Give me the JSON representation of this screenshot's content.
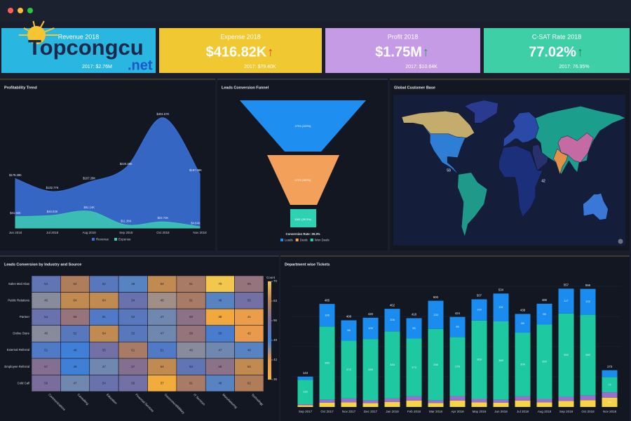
{
  "watermark": [
    "Topcongcu",
    ".net"
  ],
  "kpis": [
    {
      "title": "Revenue 2018",
      "previous": "2017: $2.76M",
      "color": "#29b6e0"
    },
    {
      "title": "Expense 2018",
      "value": "$416.82K",
      "arrow": "↑",
      "arrow_color": "#e8433a",
      "previous": "2017: $79.40K",
      "color": "#f0c832"
    },
    {
      "title": "Profit 2018",
      "value": "$1.75M",
      "arrow": "↑",
      "arrow_color": "#1f9e5a",
      "previous": "2017: $10.64K",
      "color": "#c59be6"
    },
    {
      "title": "C-SAT Rate 2018",
      "value": "77.02%",
      "arrow": "↑",
      "arrow_color": "#1f8a4c",
      "previous": "2017: 76.95%",
      "color": "#3fcfa6"
    }
  ],
  "chart_data": [
    {
      "type": "area",
      "title": "Profitability Trend",
      "categories": [
        "Jun 2018",
        "Jul 2018",
        "Aug 2018",
        "Sep 2018",
        "Oct 2018",
        "Nov 2018"
      ],
      "series": [
        {
          "name": "Revenue",
          "color": "#3b6fd6",
          "values": [
            179.38,
            132.77,
            167.29,
            220.38,
            401.57,
            197.08
          ],
          "value_labels": [
            "$179.38K",
            "$132.77K",
            "$167.29K",
            "$220.38K",
            "$401.57K",
            "$197.08K"
          ]
        },
        {
          "name": "Expense",
          "color": "#3cc7b4",
          "values": [
            41.56,
            46.03,
            61.14,
            11.36,
            22.72,
            4.64
          ],
          "value_labels": [
            "$41.56K",
            "$46.03K",
            "$61.14K",
            "$11.36K",
            "$22.72K",
            "$4.64K"
          ]
        }
      ]
    },
    {
      "type": "funnel",
      "title": "Leads Conversion Funnel",
      "categories": [
        "Leads",
        "Deals",
        "Won Deals"
      ],
      "values": [
        2703,
        2703,
        1061
      ],
      "value_labels": [
        "2703 (100%)",
        "2703 (100%)",
        "1061 (39.3%)"
      ],
      "colors": [
        "#1f8ef1",
        "#f2a05a",
        "#2fd1b3"
      ],
      "note": "Conversion Rate: 39.3%"
    },
    {
      "type": "map",
      "title": "Global Customer Base",
      "values": [
        59,
        42
      ]
    },
    {
      "type": "heatmap",
      "title": "Leads Conversion by Industry and Source",
      "x": [
        "Communications",
        "Consulting",
        "Education",
        "Financial Services",
        "Government/Military",
        "IT Services",
        "Manufacturing",
        "Technology"
      ],
      "y": [
        "Sales Mail Alias",
        "Public Relations",
        "Partner",
        "Online Store",
        "External Referral",
        "Employee Referral",
        "Cold Call"
      ],
      "values": [
        [
          53,
          62,
          52,
          48,
          64,
          61,
          70,
          59
        ],
        [
          46,
          64,
          64,
          54,
          45,
          61,
          48,
          55
        ],
        [
          54,
          59,
          51,
          52,
          47,
          58,
          38,
          41
        ],
        [
          46,
          52,
          64,
          52,
          47,
          59,
          50,
          42
        ],
        [
          51,
          49,
          55,
          61,
          51,
          46,
          47,
          48
        ],
        [
          57,
          49,
          47,
          57,
          64,
          53,
          58,
          64
        ],
        [
          56,
          47,
          54,
          55,
          37,
          61,
          48,
          62
        ]
      ],
      "colorbar_title": "Count",
      "zlim": [
        35,
        70
      ],
      "zticks": [
        70,
        63,
        56,
        49,
        42,
        35
      ],
      "colorscale": [
        [
          35,
          "#f5b335"
        ],
        [
          42,
          "#e99a4c"
        ],
        [
          49,
          "#3f7fd6"
        ],
        [
          56,
          "#7a6d9c"
        ],
        [
          63,
          "#b98050"
        ],
        [
          70,
          "#f3c64e"
        ]
      ]
    },
    {
      "type": "stacked_bar",
      "title": "Department wise Tickets",
      "categories": [
        "Sep 2017",
        "Oct 2017",
        "Nov 2017",
        "Dec 2017",
        "Jan 2018",
        "Feb 2018",
        "Mar 2018",
        "Apr 2018",
        "May 2018",
        "Jun 2018",
        "Jul 2018",
        "Aug 2018",
        "Sep 2018",
        "Oct 2018",
        "Nov 2018"
      ],
      "series": [
        {
          "color": "#f5d547",
          "values": [
            8,
            20,
            22,
            18,
            24,
            30,
            19,
            30,
            22,
            20,
            30,
            22,
            28,
            32,
            44
          ]
        },
        {
          "color": "#9b6fd0",
          "values": [
            5,
            14,
            18,
            13,
            16,
            20,
            12,
            21,
            16,
            14,
            20,
            16,
            20,
            22,
            25
          ]
        },
        {
          "color": "#1ec9a2",
          "values": [
            115,
            345,
            272,
            289,
            316,
            272,
            336,
            278,
            369,
            369,
            300,
            350,
            392,
            380,
            72
          ]
        },
        {
          "color": "#1a8cf0",
          "values": [
            15,
            106,
            96,
            100,
            106,
            96,
            133,
            95,
            100,
            131,
            88,
            98,
            117,
            122,
            32
          ]
        }
      ],
      "totals": [
        143,
        485,
        408,
        420,
        462,
        418,
        500,
        424,
        507,
        534,
        438,
        486,
        557,
        556,
        173
      ]
    }
  ]
}
